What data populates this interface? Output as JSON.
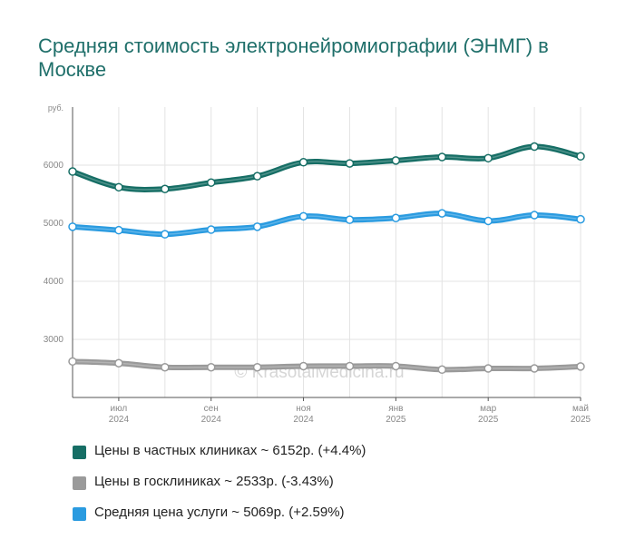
{
  "title": "Средняя стоимость электронейромиографии (ЭНМГ) в Москве",
  "watermark": "© KrasotaiMedicina.ru",
  "chart_data": {
    "type": "line",
    "y_unit": "руб.",
    "yticks": [
      3000,
      4000,
      5000,
      6000
    ],
    "ylim": [
      2000,
      7000
    ],
    "grid": true,
    "xticks": [
      {
        "month": "июл",
        "year": "2024"
      },
      {
        "month": "сен",
        "year": "2024"
      },
      {
        "month": "ноя",
        "year": "2024"
      },
      {
        "month": "янв",
        "year": "2025"
      },
      {
        "month": "мар",
        "year": "2025"
      },
      {
        "month": "май",
        "year": "2025"
      }
    ],
    "x": [
      "2024-06",
      "2024-07",
      "2024-08",
      "2024-09",
      "2024-10",
      "2024-11",
      "2024-12",
      "2025-01",
      "2025-02",
      "2025-03",
      "2025-04",
      "2025-05"
    ],
    "series": [
      {
        "key": "private",
        "color": "#166e65",
        "values": [
          5890,
          5620,
          5590,
          5700,
          5810,
          6050,
          6030,
          6080,
          6140,
          6120,
          6320,
          6152
        ]
      },
      {
        "key": "public",
        "color": "#9a9a9a",
        "values": [
          2620,
          2590,
          2520,
          2520,
          2520,
          2540,
          2540,
          2540,
          2480,
          2500,
          2500,
          2533
        ]
      },
      {
        "key": "average",
        "color": "#2a9be0",
        "values": [
          4940,
          4880,
          4810,
          4890,
          4940,
          5120,
          5060,
          5090,
          5170,
          5040,
          5140,
          5069
        ]
      }
    ],
    "legend_position": "bottom"
  },
  "legend": [
    {
      "label": "Цены в частных клиниках ~ 6152р. (+4.4%)",
      "color": "#166e65"
    },
    {
      "label": "Цены в госклиниках ~ 2533р. (-3.43%)",
      "color": "#9a9a9a"
    },
    {
      "label": "Средняя цена услуги ~ 5069р. (+2.59%)",
      "color": "#2a9be0"
    }
  ]
}
